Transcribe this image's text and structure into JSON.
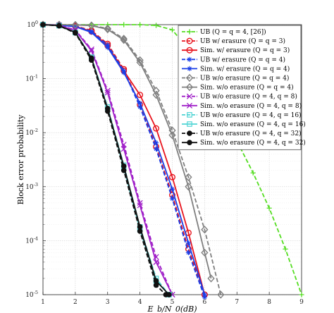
{
  "chart_data": {
    "type": "line",
    "xlabel": "E_b/N_0(dB)",
    "ylabel": "Block error probability",
    "xlim": [
      1,
      9
    ],
    "ylim": [
      1e-05,
      1
    ],
    "yscale": "log",
    "grid": true,
    "legend_position": "top-right",
    "xticks": [
      "1",
      "2",
      "3",
      "4",
      "5",
      "6",
      "7",
      "8",
      "9"
    ],
    "yticks": [
      {
        "v": 1,
        "exp": "0"
      },
      {
        "v": 0.1,
        "exp": "-1"
      },
      {
        "v": 0.01,
        "exp": "-2"
      },
      {
        "v": 0.001,
        "exp": "-3"
      },
      {
        "v": 0.0001,
        "exp": "-4"
      },
      {
        "v": 1e-05,
        "exp": "-5"
      }
    ],
    "series": [
      {
        "name": "UB (Q = q = 4, [26])",
        "color": "#55dd22",
        "dash": true,
        "marker": "plus",
        "x": [
          1,
          1.5,
          2,
          2.5,
          3,
          3.5,
          4,
          4.5,
          5,
          5.5,
          6,
          6.5,
          7,
          7.5,
          8,
          8.5,
          9
        ],
        "y": [
          1,
          1,
          1,
          1,
          1,
          1,
          1,
          0.97,
          0.8,
          0.35,
          0.11,
          0.03,
          0.007,
          0.0018,
          0.0004,
          7e-05,
          1e-05
        ]
      },
      {
        "name": "UB w/ erasure (Q = q = 3)",
        "color": "#e8141e",
        "dash": true,
        "marker": "circle",
        "x": [
          1,
          1.5,
          2,
          2.5,
          3,
          3.5,
          4,
          4.5,
          5,
          5.5,
          6
        ],
        "y": [
          1,
          0.99,
          0.95,
          0.78,
          0.44,
          0.15,
          0.033,
          0.0055,
          0.0007,
          7e-05,
          1e-05
        ]
      },
      {
        "name": "Sim. w/ erasure (Q = q = 3)",
        "color": "#e8141e",
        "dash": false,
        "marker": "circle",
        "x": [
          1,
          1.5,
          2,
          2.5,
          3,
          3.5,
          4,
          4.5,
          5,
          5.5,
          6
        ],
        "y": [
          1,
          0.98,
          0.93,
          0.75,
          0.41,
          0.14,
          0.05,
          0.012,
          0.0015,
          0.00014,
          1e-05
        ]
      },
      {
        "name": "UB w/ erasure (Q = q = 4)",
        "color": "#1a3fe8",
        "dash": true,
        "marker": "asterisk",
        "x": [
          1,
          1.5,
          2,
          2.5,
          3,
          3.5,
          4,
          4.5,
          5,
          5.5,
          6
        ],
        "y": [
          1,
          0.99,
          0.94,
          0.75,
          0.42,
          0.14,
          0.03,
          0.005,
          0.0006,
          6e-05,
          9e-06
        ]
      },
      {
        "name": "Sim. w/ erasure (Q = q = 4)",
        "color": "#1a3fe8",
        "dash": false,
        "marker": "asterisk",
        "x": [
          1,
          1.5,
          2,
          2.5,
          3,
          3.5,
          4,
          4.5,
          5,
          5.5,
          6
        ],
        "y": [
          1,
          0.98,
          0.92,
          0.72,
          0.38,
          0.13,
          0.035,
          0.0065,
          0.0009,
          9e-05,
          1e-05
        ]
      },
      {
        "name": "UB w/o erasure (Q = q = 4)",
        "color": "#808080",
        "dash": true,
        "marker": "diamond",
        "x": [
          1,
          1.5,
          2,
          2.5,
          3,
          3.5,
          4,
          4.5,
          5,
          5.5,
          6,
          6.5
        ],
        "y": [
          1,
          1,
          0.99,
          0.97,
          0.85,
          0.55,
          0.22,
          0.06,
          0.011,
          0.0015,
          0.00016,
          1e-05
        ]
      },
      {
        "name": "Sim. w/o erasure (Q = q = 4)",
        "color": "#808080",
        "dash": false,
        "marker": "diamond",
        "x": [
          1,
          1.5,
          2,
          2.5,
          3,
          3.5,
          4,
          4.5,
          5,
          5.5,
          6,
          6.2
        ],
        "y": [
          1,
          1,
          0.99,
          0.96,
          0.82,
          0.52,
          0.2,
          0.05,
          0.009,
          0.001,
          6e-05,
          2e-05
        ]
      },
      {
        "name": "UB w/o erasure (Q = 4, q = 8)",
        "color": "#a020c8",
        "dash": true,
        "marker": "x",
        "x": [
          1,
          1.5,
          2,
          2.5,
          3,
          3.5,
          4,
          4.5,
          5
        ],
        "y": [
          1,
          0.98,
          0.8,
          0.35,
          0.06,
          0.006,
          0.0005,
          5e-05,
          1e-05
        ]
      },
      {
        "name": "Sim. w/o erasure (Q = 4, q = 8)",
        "color": "#a020c8",
        "dash": false,
        "marker": "x",
        "x": [
          1,
          1.5,
          2,
          2.5,
          3,
          3.5,
          4,
          4.5,
          5
        ],
        "y": [
          1,
          0.97,
          0.78,
          0.33,
          0.055,
          0.005,
          0.00045,
          4e-05,
          1e-05
        ]
      },
      {
        "name": "UB w/o erasure (Q = 4, q = 16)",
        "color": "#4fd4d4",
        "dash": true,
        "marker": "square",
        "x": [
          1,
          1.5,
          2,
          2.5,
          3,
          3.5,
          4,
          4.5,
          4.9
        ],
        "y": [
          1,
          0.96,
          0.72,
          0.25,
          0.03,
          0.0025,
          0.00018,
          2e-05,
          1e-05
        ]
      },
      {
        "name": "Sim. w/o erasure (Q = 4, q = 16)",
        "color": "#4fd4d4",
        "dash": false,
        "marker": "square",
        "x": [
          1,
          1.5,
          2,
          2.5,
          3,
          3.5,
          4,
          4.5,
          4.9
        ],
        "y": [
          1,
          0.96,
          0.71,
          0.24,
          0.028,
          0.0022,
          0.00016,
          1.8e-05,
          1e-05
        ]
      },
      {
        "name": "UB w/o erasure (Q = 4, q = 32)",
        "color": "#111111",
        "dash": true,
        "marker": "dot",
        "x": [
          1,
          1.5,
          2,
          2.5,
          3,
          3.5,
          4,
          4.5,
          4.8
        ],
        "y": [
          1,
          0.95,
          0.7,
          0.22,
          0.025,
          0.002,
          0.00015,
          1.5e-05,
          1e-05
        ]
      },
      {
        "name": "Sim. w/o erasure (Q = 4, q = 32)",
        "color": "#111111",
        "dash": false,
        "marker": "dot",
        "x": [
          1,
          1.5,
          2,
          2.5,
          3,
          3.5,
          4,
          4.5,
          4.9
        ],
        "y": [
          1,
          0.96,
          0.72,
          0.24,
          0.028,
          0.0024,
          0.00018,
          1.8e-05,
          1e-05
        ]
      }
    ]
  }
}
